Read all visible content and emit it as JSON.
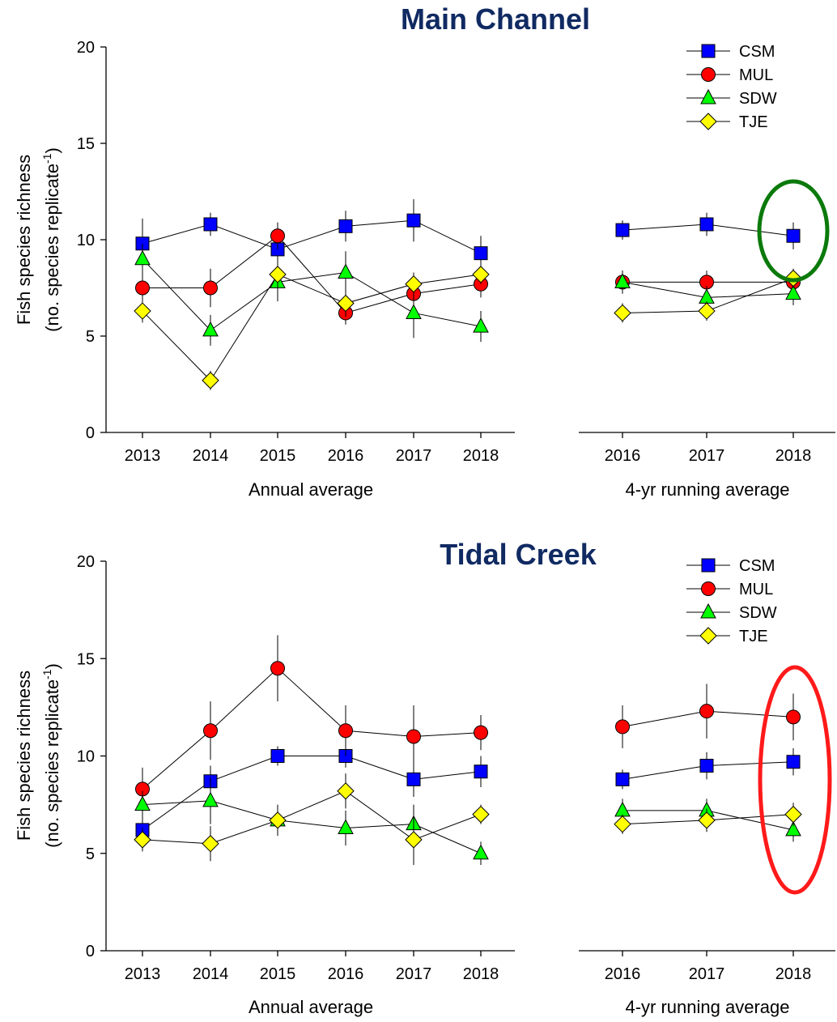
{
  "series_styles": [
    {
      "name": "CSM",
      "marker": "square",
      "color": "#0000ff"
    },
    {
      "name": "MUL",
      "marker": "circle",
      "color": "#ff0000"
    },
    {
      "name": "SDW",
      "marker": "triangle",
      "color": "#00ff00"
    },
    {
      "name": "TJE",
      "marker": "diamond",
      "color": "#ffff00"
    }
  ],
  "chart_data": [
    {
      "type": "line",
      "title": "Main Channel",
      "ylabel_line1": "Fish species richness",
      "ylabel_line2": "(no. species replicate",
      "ylabel_sup": "-1",
      "ylabel_close": ")",
      "ylim": [
        0,
        20
      ],
      "yticks": [
        "0",
        "5",
        "10",
        "15",
        "20"
      ],
      "legend_position": "top-right",
      "highlight": {
        "panel": "running",
        "category": "2018",
        "color": "#0b7a0b"
      },
      "panels": [
        {
          "id": "annual",
          "xlabel": "Annual average",
          "categories": [
            "2013",
            "2014",
            "2015",
            "2016",
            "2017",
            "2018"
          ],
          "series": [
            {
              "name": "CSM",
              "values": [
                9.8,
                10.8,
                9.5,
                10.7,
                11.0,
                9.3
              ],
              "errors": [
                1.3,
                0.6,
                0.7,
                0.8,
                1.1,
                0.9
              ]
            },
            {
              "name": "MUL",
              "values": [
                7.5,
                7.5,
                10.2,
                6.2,
                7.2,
                7.7
              ],
              "errors": [
                0.9,
                1.0,
                0.7,
                0.6,
                0.8,
                0.7
              ]
            },
            {
              "name": "SDW",
              "values": [
                9.0,
                5.3,
                7.8,
                8.3,
                6.2,
                5.5
              ],
              "errors": [
                0.8,
                0.8,
                1.0,
                1.1,
                1.3,
                0.8
              ]
            },
            {
              "name": "TJE",
              "values": [
                6.3,
                2.7,
                8.2,
                6.7,
                7.7,
                8.2
              ],
              "errors": [
                0.6,
                0.5,
                0.7,
                0.7,
                0.6,
                0.5
              ]
            }
          ]
        },
        {
          "id": "running",
          "xlabel": "4-yr running average",
          "categories": [
            "2016",
            "2017",
            "2018"
          ],
          "series": [
            {
              "name": "CSM",
              "values": [
                10.5,
                10.8,
                10.2
              ],
              "errors": [
                0.5,
                0.6,
                0.7
              ]
            },
            {
              "name": "MUL",
              "values": [
                7.8,
                7.8,
                7.8
              ],
              "errors": [
                0.6,
                0.6,
                0.5
              ]
            },
            {
              "name": "SDW",
              "values": [
                7.8,
                7.0,
                7.2
              ],
              "errors": [
                0.6,
                0.6,
                0.6
              ]
            },
            {
              "name": "TJE",
              "values": [
                6.2,
                6.3,
                8.0
              ],
              "errors": [
                0.5,
                0.5,
                0.5
              ]
            }
          ]
        }
      ]
    },
    {
      "type": "line",
      "title": "Tidal Creek",
      "ylabel_line1": "Fish species richness",
      "ylabel_line2": "(no. species replicate",
      "ylabel_sup": "-1",
      "ylabel_close": ")",
      "ylim": [
        0,
        20
      ],
      "yticks": [
        "0",
        "5",
        "10",
        "15",
        "20"
      ],
      "legend_position": "top-right",
      "highlight": {
        "panel": "running",
        "category": "2018",
        "color": "#ff1a1a"
      },
      "panels": [
        {
          "id": "annual",
          "xlabel": "Annual average",
          "categories": [
            "2013",
            "2014",
            "2015",
            "2016",
            "2017",
            "2018"
          ],
          "series": [
            {
              "name": "CSM",
              "values": [
                6.2,
                8.7,
                10.0,
                10.0,
                8.8,
                9.2
              ],
              "errors": [
                0.7,
                0.8,
                0.5,
                0.6,
                0.9,
                0.8
              ]
            },
            {
              "name": "MUL",
              "values": [
                8.3,
                11.3,
                14.5,
                11.3,
                11.0,
                11.2
              ],
              "errors": [
                1.1,
                1.5,
                1.7,
                1.3,
                1.6,
                0.9
              ]
            },
            {
              "name": "SDW",
              "values": [
                7.5,
                7.7,
                6.7,
                6.3,
                6.5,
                5.0
              ],
              "errors": [
                0.7,
                1.2,
                0.7,
                0.9,
                1.0,
                0.6
              ]
            },
            {
              "name": "TJE",
              "values": [
                5.7,
                5.5,
                6.7,
                8.2,
                5.7,
                7.0
              ],
              "errors": [
                0.6,
                0.9,
                0.8,
                0.9,
                1.3,
                0.5
              ]
            }
          ]
        },
        {
          "id": "running",
          "xlabel": "4-yr running average",
          "categories": [
            "2016",
            "2017",
            "2018"
          ],
          "series": [
            {
              "name": "CSM",
              "values": [
                8.8,
                9.5,
                9.7
              ],
              "errors": [
                0.5,
                0.7,
                0.7
              ]
            },
            {
              "name": "MUL",
              "values": [
                11.5,
                12.3,
                12.0
              ],
              "errors": [
                1.1,
                1.4,
                1.2
              ]
            },
            {
              "name": "SDW",
              "values": [
                7.2,
                7.2,
                6.2
              ],
              "errors": [
                0.6,
                0.6,
                0.6
              ]
            },
            {
              "name": "TJE",
              "values": [
                6.5,
                6.7,
                7.0
              ],
              "errors": [
                0.5,
                0.6,
                0.6
              ]
            }
          ]
        }
      ]
    }
  ]
}
